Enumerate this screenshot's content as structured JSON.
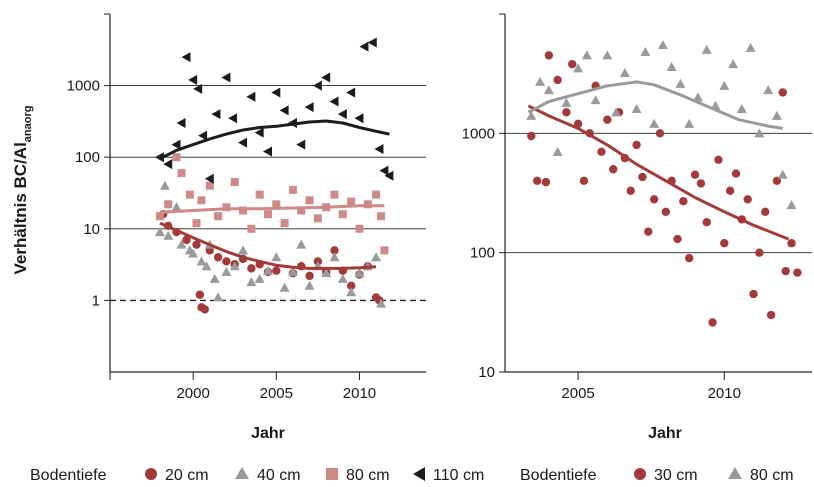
{
  "colors": {
    "cm20": "#a33a3a",
    "cm40": "#9a9a9a",
    "cm80_left": "#cd8a86",
    "cm110": "#1c1c1c",
    "cm30": "#a33a3a",
    "cm80_right": "#9a9a9a",
    "grid": "#222222"
  },
  "y_label_main": "Verhältnis BC/Al",
  "y_label_sub": "anaorg",
  "chart_data": [
    {
      "type": "scatter",
      "scale": "log",
      "xlabel": "Jahr",
      "xlim": [
        1995,
        2014
      ],
      "ylim": [
        0.1,
        10000
      ],
      "x_ticks": [
        "2000",
        "2005",
        "2010"
      ],
      "y_ticks": [
        "1",
        "10",
        "100",
        "1000"
      ],
      "reference_line": {
        "y": 1,
        "style": "dashed"
      },
      "legend_title": "Bodentiefe",
      "series": [
        {
          "name": "20 cm",
          "marker": "circle",
          "trend": [
            [
              1998,
              12
            ],
            [
              1999,
              9.5
            ],
            [
              2000,
              7.5
            ],
            [
              2001,
              6
            ],
            [
              2002,
              4.8
            ],
            [
              2003,
              4
            ],
            [
              2004,
              3.5
            ],
            [
              2005,
              3.1
            ],
            [
              2006,
              2.9
            ],
            [
              2007,
              2.8
            ],
            [
              2008,
              2.8
            ],
            [
              2009,
              2.8
            ],
            [
              2010,
              2.85
            ],
            [
              2011,
              2.95
            ]
          ],
          "points": [
            [
              1998.2,
              16
            ],
            [
              1998.5,
              11
            ],
            [
              1999,
              9
            ],
            [
              1999.6,
              7
            ],
            [
              2000.2,
              6
            ],
            [
              2000.4,
              1.2
            ],
            [
              2000.5,
              0.8
            ],
            [
              2000.7,
              0.75
            ],
            [
              2001,
              5
            ],
            [
              2001.5,
              4
            ],
            [
              2002,
              3.5
            ],
            [
              2002.5,
              3.2
            ],
            [
              2003,
              3.8
            ],
            [
              2003.5,
              2.8
            ],
            [
              2004,
              3.2
            ],
            [
              2004.5,
              2.5
            ],
            [
              2005,
              2.6
            ],
            [
              2006,
              2.4
            ],
            [
              2006.5,
              3
            ],
            [
              2007,
              2.2
            ],
            [
              2007.5,
              3.5
            ],
            [
              2008,
              2.5
            ],
            [
              2008.5,
              5
            ],
            [
              2009,
              2.6
            ],
            [
              2009.5,
              1.6
            ],
            [
              2010,
              2.3
            ],
            [
              2010.5,
              3
            ],
            [
              2011,
              1.1
            ],
            [
              2011.2,
              1.0
            ]
          ]
        },
        {
          "name": "40 cm",
          "marker": "triangle-up",
          "points": [
            [
              1998,
              9
            ],
            [
              1998.3,
              40
            ],
            [
              1998.5,
              8
            ],
            [
              1999,
              20
            ],
            [
              1999.3,
              6
            ],
            [
              1999.8,
              5
            ],
            [
              2000,
              4.5
            ],
            [
              2000.5,
              3.5
            ],
            [
              2000.8,
              3
            ],
            [
              2001,
              6
            ],
            [
              2001.3,
              2
            ],
            [
              2001.5,
              1.1
            ],
            [
              2002,
              2.5
            ],
            [
              2002.5,
              3
            ],
            [
              2003,
              5
            ],
            [
              2003.5,
              1.8
            ],
            [
              2004,
              2
            ],
            [
              2004.5,
              2.6
            ],
            [
              2005,
              4
            ],
            [
              2005.5,
              1.5
            ],
            [
              2006,
              2.5
            ],
            [
              2006.5,
              6
            ],
            [
              2007,
              1.6
            ],
            [
              2007.5,
              3
            ],
            [
              2008,
              2.4
            ],
            [
              2008.5,
              4
            ],
            [
              2009,
              2
            ],
            [
              2009.5,
              1.3
            ],
            [
              2010,
              2.4
            ],
            [
              2010.5,
              3
            ],
            [
              2011,
              4
            ],
            [
              2011.3,
              0.9
            ]
          ]
        },
        {
          "name": "80 cm",
          "marker": "square",
          "trend": [
            [
              1998,
              17
            ],
            [
              2000,
              18
            ],
            [
              2002,
              19
            ],
            [
              2004,
              19
            ],
            [
              2006,
              19.5
            ],
            [
              2008,
              20
            ],
            [
              2010,
              21
            ],
            [
              2011.5,
              21
            ]
          ],
          "points": [
            [
              1998,
              15
            ],
            [
              1998.5,
              22
            ],
            [
              1999,
              100
            ],
            [
              1999.3,
              60
            ],
            [
              1999.8,
              30
            ],
            [
              2000.2,
              12
            ],
            [
              2000.5,
              25
            ],
            [
              2001,
              40
            ],
            [
              2001.5,
              15
            ],
            [
              2002,
              20
            ],
            [
              2002.5,
              45
            ],
            [
              2003,
              18
            ],
            [
              2003.5,
              10
            ],
            [
              2004,
              30
            ],
            [
              2004.5,
              16
            ],
            [
              2005,
              22
            ],
            [
              2005.5,
              12
            ],
            [
              2006,
              35
            ],
            [
              2006.5,
              18
            ],
            [
              2007,
              25
            ],
            [
              2007.5,
              14
            ],
            [
              2008,
              20
            ],
            [
              2008.5,
              30
            ],
            [
              2009,
              16
            ],
            [
              2009.5,
              24
            ],
            [
              2010,
              10
            ],
            [
              2010.5,
              22
            ],
            [
              2011,
              30
            ],
            [
              2011.3,
              15
            ],
            [
              2011.5,
              5
            ]
          ]
        },
        {
          "name": "110 cm",
          "marker": "triangle-left",
          "trend": [
            [
              1998,
              95
            ],
            [
              1999,
              125
            ],
            [
              2000,
              150
            ],
            [
              2001,
              180
            ],
            [
              2002,
              210
            ],
            [
              2003,
              240
            ],
            [
              2004,
              260
            ],
            [
              2005,
              270
            ],
            [
              2006,
              290
            ],
            [
              2007,
              310
            ],
            [
              2008,
              320
            ],
            [
              2009,
              300
            ],
            [
              2010,
              260
            ],
            [
              2011,
              230
            ],
            [
              2011.8,
              210
            ]
          ],
          "points": [
            [
              1998,
              100
            ],
            [
              1998.5,
              80
            ],
            [
              1999,
              150
            ],
            [
              1999.3,
              300
            ],
            [
              1999.6,
              2500
            ],
            [
              2000,
              1200
            ],
            [
              2000.3,
              900
            ],
            [
              2000.6,
              200
            ],
            [
              2001,
              50
            ],
            [
              2001.4,
              400
            ],
            [
              2002,
              1300
            ],
            [
              2002.4,
              350
            ],
            [
              2003,
              160
            ],
            [
              2003.5,
              700
            ],
            [
              2004,
              220
            ],
            [
              2004.5,
              120
            ],
            [
              2005,
              800
            ],
            [
              2005.5,
              450
            ],
            [
              2006,
              300
            ],
            [
              2006.5,
              150
            ],
            [
              2007,
              500
            ],
            [
              2007.5,
              1000
            ],
            [
              2008,
              1300
            ],
            [
              2008.5,
              600
            ],
            [
              2009,
              400
            ],
            [
              2009.5,
              800
            ],
            [
              2010,
              350
            ],
            [
              2010.3,
              3500
            ],
            [
              2010.8,
              4000
            ],
            [
              2011.2,
              130
            ],
            [
              2011.5,
              65
            ],
            [
              2011.8,
              55
            ]
          ]
        }
      ]
    },
    {
      "type": "scatter",
      "scale": "log",
      "xlabel": "Jahr",
      "xlim": [
        2002.5,
        2013
      ],
      "ylim": [
        10,
        10000
      ],
      "x_ticks": [
        "2005",
        "2010"
      ],
      "y_ticks": [
        "10",
        "100",
        "1000"
      ],
      "legend_title": "Bodentiefe",
      "series": [
        {
          "name": "30 cm",
          "marker": "circle",
          "trend": [
            [
              2003.3,
              1700
            ],
            [
              2004,
              1400
            ],
            [
              2005,
              1100
            ],
            [
              2006,
              800
            ],
            [
              2007,
              550
            ],
            [
              2008,
              400
            ],
            [
              2009,
              290
            ],
            [
              2010,
              220
            ],
            [
              2011,
              170
            ],
            [
              2012.2,
              130
            ]
          ],
          "points": [
            [
              2003.4,
              950
            ],
            [
              2003.6,
              400
            ],
            [
              2003.9,
              390
            ],
            [
              2004,
              4500
            ],
            [
              2004.3,
              2800
            ],
            [
              2004.6,
              1500
            ],
            [
              2004.8,
              3800
            ],
            [
              2005,
              1200
            ],
            [
              2005.2,
              400
            ],
            [
              2005.4,
              1000
            ],
            [
              2005.6,
              2500
            ],
            [
              2005.8,
              700
            ],
            [
              2006,
              1300
            ],
            [
              2006.2,
              500
            ],
            [
              2006.4,
              1500
            ],
            [
              2006.6,
              620
            ],
            [
              2006.8,
              330
            ],
            [
              2007,
              800
            ],
            [
              2007.2,
              430
            ],
            [
              2007.4,
              150
            ],
            [
              2007.6,
              280
            ],
            [
              2007.8,
              1000
            ],
            [
              2008,
              220
            ],
            [
              2008.2,
              400
            ],
            [
              2008.4,
              130
            ],
            [
              2008.6,
              270
            ],
            [
              2008.8,
              90
            ],
            [
              2009,
              450
            ],
            [
              2009.2,
              380
            ],
            [
              2009.4,
              180
            ],
            [
              2009.6,
              26
            ],
            [
              2009.8,
              600
            ],
            [
              2010,
              120
            ],
            [
              2010.2,
              330
            ],
            [
              2010.4,
              460
            ],
            [
              2010.6,
              190
            ],
            [
              2010.8,
              280
            ],
            [
              2011,
              45
            ],
            [
              2011.2,
              100
            ],
            [
              2011.4,
              220
            ],
            [
              2011.6,
              30
            ],
            [
              2011.8,
              400
            ],
            [
              2012,
              2200
            ],
            [
              2012.1,
              70
            ],
            [
              2012.3,
              120
            ],
            [
              2012.5,
              68
            ]
          ]
        },
        {
          "name": "80 cm",
          "marker": "triangle-up",
          "trend": [
            [
              2003.3,
              1500
            ],
            [
              2004,
              1850
            ],
            [
              2005,
              2150
            ],
            [
              2006,
              2500
            ],
            [
              2007,
              2700
            ],
            [
              2007.6,
              2550
            ],
            [
              2008.5,
              2100
            ],
            [
              2009.5,
              1650
            ],
            [
              2010.5,
              1300
            ],
            [
              2011.5,
              1150
            ],
            [
              2012,
              1100
            ]
          ],
          "points": [
            [
              2003.4,
              1400
            ],
            [
              2003.7,
              2700
            ],
            [
              2004,
              2300
            ],
            [
              2004.3,
              700
            ],
            [
              2004.6,
              1800
            ],
            [
              2005,
              3500
            ],
            [
              2005.3,
              4500
            ],
            [
              2005.6,
              1900
            ],
            [
              2006,
              4500
            ],
            [
              2006.3,
              1500
            ],
            [
              2006.6,
              3200
            ],
            [
              2007,
              1600
            ],
            [
              2007.3,
              4800
            ],
            [
              2007.6,
              1200
            ],
            [
              2007.9,
              5500
            ],
            [
              2008.2,
              3600
            ],
            [
              2008.5,
              2600
            ],
            [
              2008.8,
              1200
            ],
            [
              2009.1,
              2000
            ],
            [
              2009.4,
              5000
            ],
            [
              2009.7,
              1700
            ],
            [
              2010,
              2500
            ],
            [
              2010.3,
              3800
            ],
            [
              2010.6,
              1600
            ],
            [
              2010.9,
              5200
            ],
            [
              2011.2,
              1000
            ],
            [
              2011.5,
              2300
            ],
            [
              2011.8,
              1400
            ],
            [
              2012,
              450
            ],
            [
              2012.3,
              250
            ]
          ]
        }
      ]
    }
  ]
}
